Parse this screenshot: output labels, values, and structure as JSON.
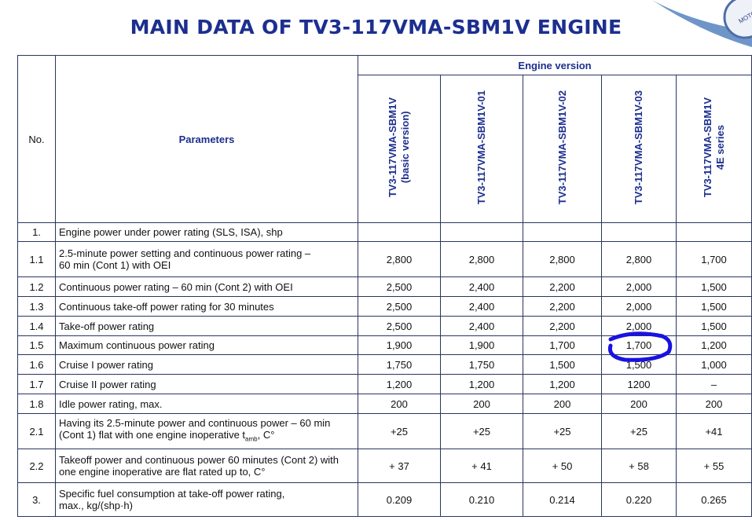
{
  "header": {
    "title": "MAIN DATA OF TV3-117VMA-SBM1V ENGINE",
    "logo_text": "MOTOR"
  },
  "table": {
    "col_no": "No.",
    "col_parameters": "Parameters",
    "col_group": "Engine version",
    "versions": [
      [
        "TV3-117VMA-SBM1V",
        "(basic version)"
      ],
      [
        "TV3-117VMA-SBM1V-01"
      ],
      [
        "TV3-117VMA-SBM1V-02"
      ],
      [
        "TV3-117VMA-SBM1V-03"
      ],
      [
        "TV3-117VMA-SBM1V",
        "4E series"
      ]
    ],
    "rows": [
      {
        "no": "1.",
        "parameter": [
          "Engine power under power rating  (SLS, ISA), shp"
        ]
      },
      {
        "no": "1.1",
        "parameter": [
          "2.5-minute power setting and continuous power rating –",
          "60 min (Cont 1) with OEI"
        ],
        "values": [
          "2,800",
          "2,800",
          "2,800",
          "2,800",
          "1,700"
        ]
      },
      {
        "no": "1.2",
        "parameter": [
          "Continuous power rating – 60 min (Cont 2) with OEI"
        ],
        "values": [
          "2,500",
          "2,400",
          "2,200",
          "2,000",
          "1,500"
        ]
      },
      {
        "no": "1.3",
        "parameter": [
          "Continuous take-off power rating for 30 minutes"
        ],
        "values": [
          "2,500",
          "2,400",
          "2,200",
          "2,000",
          "1,500"
        ]
      },
      {
        "no": "1.4",
        "parameter": [
          "Take-off power rating"
        ],
        "values": [
          "2,500",
          "2,400",
          "2,200",
          "2,000",
          "1,500"
        ]
      },
      {
        "no": "1.5",
        "parameter": [
          "Maximum continuous power rating"
        ],
        "values": [
          "1,900",
          "1,900",
          "1,700",
          "1,700",
          "1,200"
        ]
      },
      {
        "no": "1.6",
        "parameter": [
          "Cruise I power rating"
        ],
        "values": [
          "1,750",
          "1,750",
          "1,500",
          "1,500",
          "1,000"
        ]
      },
      {
        "no": "1.7",
        "parameter": [
          "Cruise II power rating"
        ],
        "values": [
          "1,200",
          "1,200",
          "1,200",
          "1200",
          "–"
        ]
      },
      {
        "no": "1.8",
        "parameter": [
          "Idle power rating, max."
        ],
        "values": [
          "200",
          "200",
          "200",
          "200",
          "200"
        ]
      },
      {
        "no": "2.1",
        "parameter": [
          "Having its 2.5-minute power and continuous power – 60 min",
          "(Cont 1) flat with one engine inoperative t"
        ],
        "parameter_sub": "amb",
        "parameter_end": ", C°",
        "values": [
          "+25",
          "+25",
          "+25",
          "+25",
          "+41"
        ]
      },
      {
        "no": "2.2",
        "parameter": [
          "Takeoff power and continuous power 60 minutes (Cont 2) with",
          "one engine inoperative are flat rated up to, C°"
        ],
        "values": [
          "+ 37",
          "+ 41",
          "+ 50",
          "+ 58",
          "+ 55"
        ]
      },
      {
        "no": "3.",
        "parameter": [
          "Specific fuel consumption at take-off power rating,",
          "max., kg/(shp·h)"
        ],
        "values": [
          "0.209",
          "0.210",
          "0.214",
          "0.220",
          "0.265"
        ]
      }
    ]
  }
}
